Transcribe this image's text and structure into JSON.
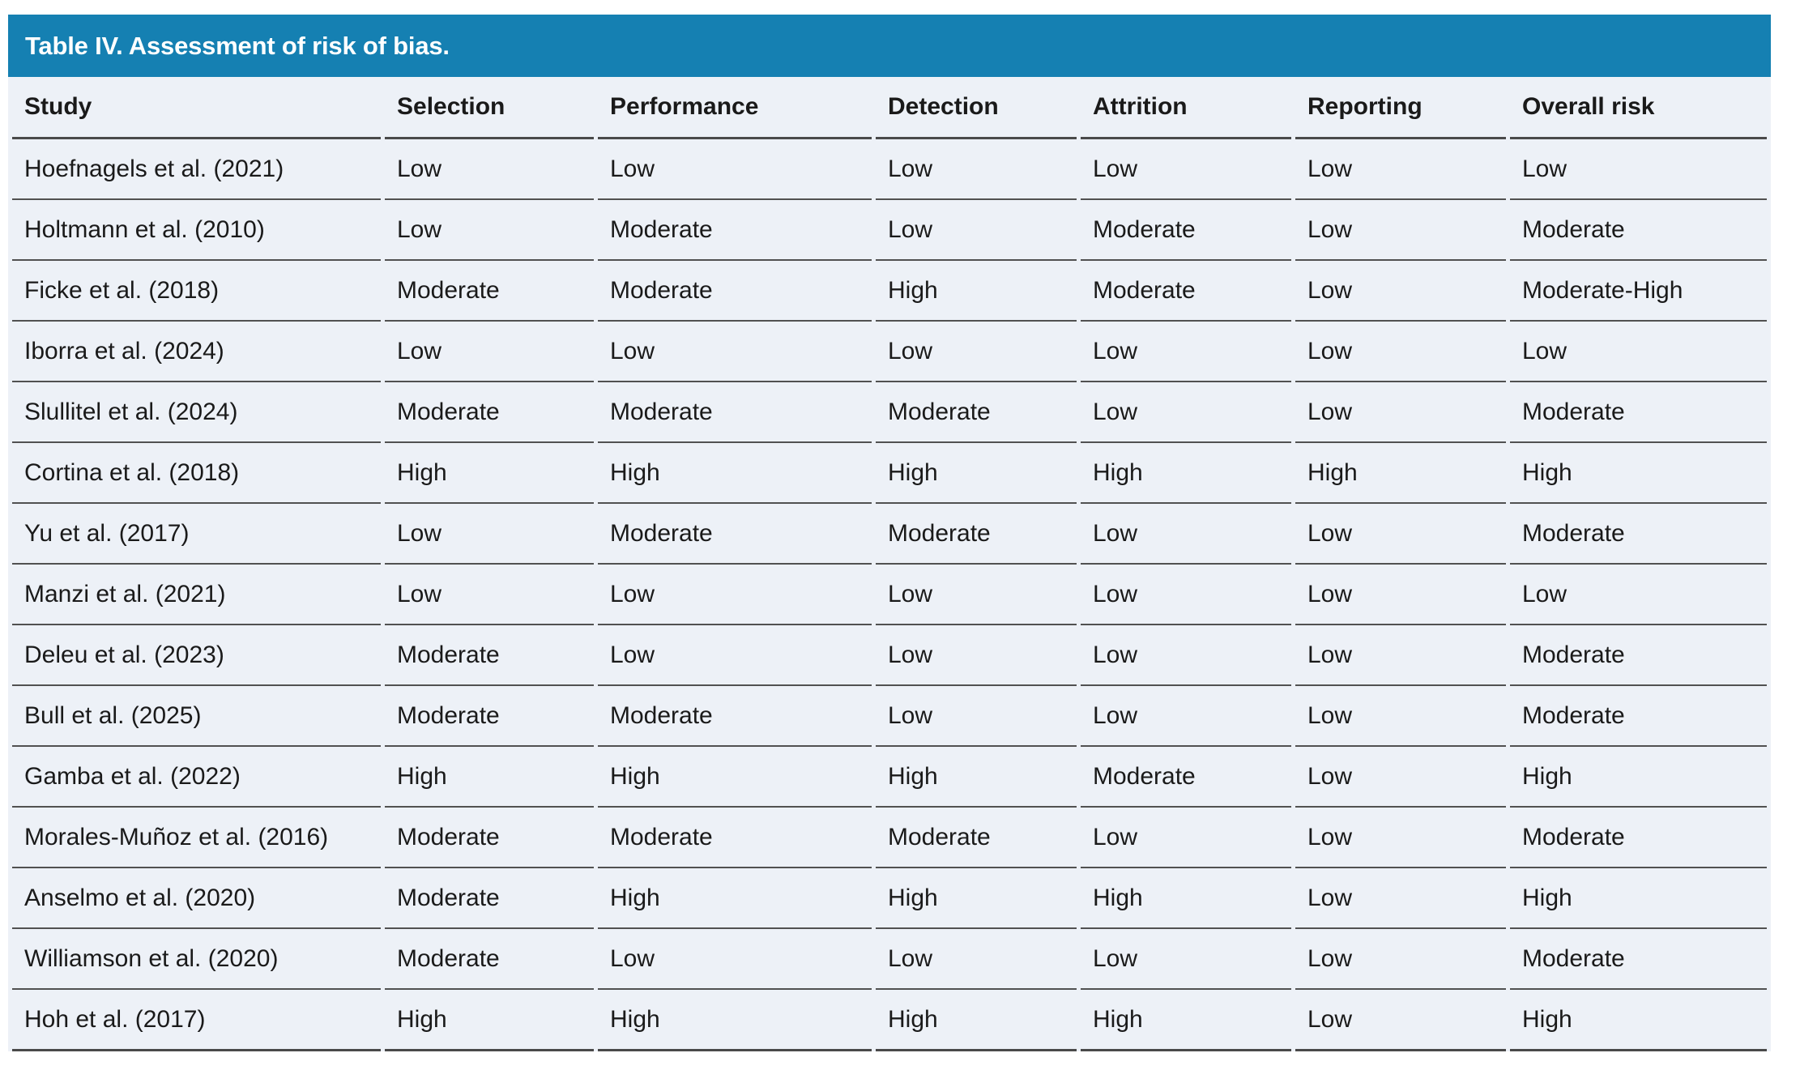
{
  "table": {
    "title": "Table IV. Assessment of risk of bias.",
    "columns": [
      "Study",
      "Selection",
      "Performance",
      "Detection",
      "Attrition",
      "Reporting",
      "Overall risk"
    ],
    "rows": [
      {
        "study": "Hoefnagels et al. (2021)",
        "values": [
          "Low",
          "Low",
          "Low",
          "Low",
          "Low",
          "Low"
        ]
      },
      {
        "study": "Holtmann et al. (2010)",
        "values": [
          "Low",
          "Moderate",
          "Low",
          "Moderate",
          "Low",
          "Moderate"
        ]
      },
      {
        "study": "Ficke et al. (2018)",
        "values": [
          "Moderate",
          "Moderate",
          "High",
          "Moderate",
          "Low",
          "Moderate-High"
        ]
      },
      {
        "study": "Iborra et al. (2024)",
        "values": [
          "Low",
          "Low",
          "Low",
          "Low",
          "Low",
          "Low"
        ]
      },
      {
        "study": "Slullitel et al. (2024)",
        "values": [
          "Moderate",
          "Moderate",
          "Moderate",
          "Low",
          "Low",
          "Moderate"
        ]
      },
      {
        "study": "Cortina et al. (2018)",
        "values": [
          "High",
          "High",
          "High",
          "High",
          "High",
          "High"
        ]
      },
      {
        "study": "Yu et al. (2017)",
        "values": [
          "Low",
          "Moderate",
          "Moderate",
          "Low",
          "Low",
          "Moderate"
        ]
      },
      {
        "study": "Manzi et al. (2021)",
        "values": [
          "Low",
          "Low",
          "Low",
          "Low",
          "Low",
          "Low"
        ]
      },
      {
        "study": "Deleu et al. (2023)",
        "values": [
          "Moderate",
          "Low",
          "Low",
          "Low",
          "Low",
          "Moderate"
        ]
      },
      {
        "study": "Bull et al. (2025)",
        "values": [
          "Moderate",
          "Moderate",
          "Low",
          "Low",
          "Low",
          "Moderate"
        ]
      },
      {
        "study": "Gamba et al. (2022)",
        "values": [
          "High",
          "High",
          "High",
          "Moderate",
          "Low",
          "High"
        ]
      },
      {
        "study": "Morales-Muñoz et al. (2016)",
        "values": [
          "Moderate",
          "Moderate",
          "Moderate",
          "Low",
          "Low",
          "Moderate"
        ]
      },
      {
        "study": "Anselmo et al. (2020)",
        "values": [
          "Moderate",
          "High",
          "High",
          "High",
          "Low",
          "High"
        ]
      },
      {
        "study": "Williamson et al. (2020)",
        "values": [
          "Moderate",
          "Low",
          "Low",
          "Low",
          "Low",
          "Moderate"
        ]
      },
      {
        "study": "Hoh et al. (2017)",
        "values": [
          "High",
          "High",
          "High",
          "High",
          "Low",
          "High"
        ]
      }
    ]
  },
  "colors": {
    "title_bar_background": "#1580b2",
    "title_text": "#ffffff",
    "row_background": "#edf1f7",
    "rule_line": "#4a4a4a",
    "body_text": "#1a1a1a"
  }
}
